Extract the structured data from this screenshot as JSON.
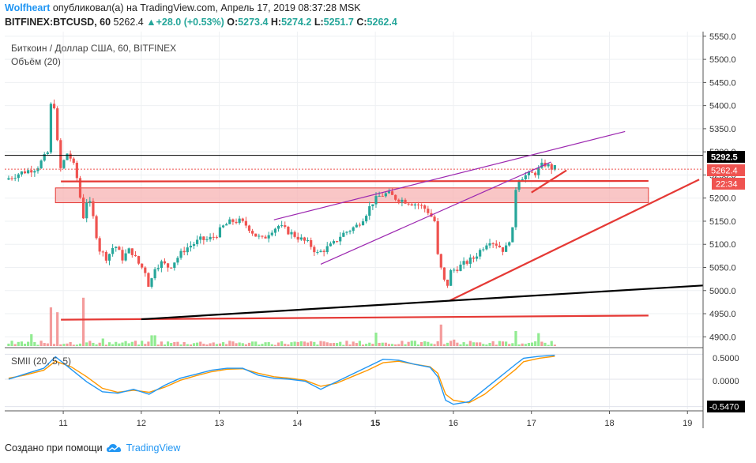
{
  "header": {
    "user": "Wolfheart",
    "published_text": "опубликовал(а) на TradingView.com, Апрель 17, 2019 08:37:28 MSK",
    "symbol": "BITFINEX:BTCUSD, 60",
    "last": "5262.4",
    "change": "▲+28.0 (+0.53%)",
    "o_label": "O:",
    "o": "5273.4",
    "h_label": "H:",
    "h": "5274.2",
    "l_label": "L:",
    "l": "5251.7",
    "c_label": "C:",
    "c": "5262.4"
  },
  "legend": {
    "title": "Биткоин / Доллар США, 60, BITFINEX",
    "volume": "Объём (20)",
    "smii": "SMII (20, 5, 5)"
  },
  "footer": {
    "text": "Создано при помощи",
    "brand": "TradingView",
    "logo_icon": "tradingview-cloud-icon"
  },
  "price_labels": {
    "level": "5292.5",
    "last": "5262.4",
    "countdown": "22:34",
    "smii_top": "0.5000",
    "smii_zero": "0.0000",
    "smii_bottom": "-0.5470"
  },
  "colors": {
    "up": "#26a69a",
    "down": "#ef5350",
    "trend_red": "#e53935",
    "wedge": "#9c27b0",
    "smii_fast": "#2196f3",
    "smii_slow": "#ff9800"
  },
  "chart_data": {
    "type": "candlestick",
    "x_ticks": [
      "11",
      "12",
      "13",
      "14",
      "15",
      "16",
      "17",
      "18",
      "19"
    ],
    "x_tick_positions": [
      11,
      12,
      13,
      14,
      15,
      16,
      17,
      18,
      19
    ],
    "x_range": [
      10.25,
      19.2
    ],
    "y_ticks": [
      4900,
      4950,
      5000,
      5050,
      5100,
      5150,
      5200,
      5250,
      5300,
      5350,
      5400,
      5450,
      5500,
      5550
    ],
    "ylim": [
      4880,
      5560
    ],
    "price_path": [
      [
        10.3,
        5240
      ],
      [
        10.5,
        5255
      ],
      [
        10.7,
        5265
      ],
      [
        10.85,
        5300
      ],
      [
        10.9,
        5450
      ],
      [
        10.95,
        5350
      ],
      [
        11.0,
        5260
      ],
      [
        11.1,
        5300
      ],
      [
        11.2,
        5260
      ],
      [
        11.25,
        5210
      ],
      [
        11.3,
        5160
      ],
      [
        11.35,
        5200
      ],
      [
        11.4,
        5180
      ],
      [
        11.5,
        5090
      ],
      [
        11.6,
        5070
      ],
      [
        11.7,
        5100
      ],
      [
        11.8,
        5070
      ],
      [
        11.9,
        5090
      ],
      [
        12.0,
        5060
      ],
      [
        12.1,
        5040
      ],
      [
        12.15,
        5000
      ],
      [
        12.2,
        5050
      ],
      [
        12.3,
        5060
      ],
      [
        12.4,
        5050
      ],
      [
        12.5,
        5070
      ],
      [
        12.6,
        5090
      ],
      [
        12.7,
        5100
      ],
      [
        12.8,
        5110
      ],
      [
        12.9,
        5110
      ],
      [
        13.0,
        5120
      ],
      [
        13.1,
        5140
      ],
      [
        13.2,
        5150
      ],
      [
        13.3,
        5150
      ],
      [
        13.4,
        5140
      ],
      [
        13.5,
        5120
      ],
      [
        13.6,
        5110
      ],
      [
        13.7,
        5130
      ],
      [
        13.8,
        5140
      ],
      [
        13.9,
        5130
      ],
      [
        14.0,
        5120
      ],
      [
        14.1,
        5110
      ],
      [
        14.2,
        5100
      ],
      [
        14.3,
        5080
      ],
      [
        14.4,
        5090
      ],
      [
        14.5,
        5100
      ],
      [
        14.6,
        5120
      ],
      [
        14.7,
        5130
      ],
      [
        14.8,
        5140
      ],
      [
        14.9,
        5160
      ],
      [
        15.0,
        5190
      ],
      [
        15.1,
        5205
      ],
      [
        15.2,
        5210
      ],
      [
        15.3,
        5200
      ],
      [
        15.4,
        5195
      ],
      [
        15.5,
        5190
      ],
      [
        15.6,
        5185
      ],
      [
        15.7,
        5175
      ],
      [
        15.8,
        5150
      ],
      [
        15.85,
        5060
      ],
      [
        15.9,
        5040
      ],
      [
        15.95,
        5000
      ],
      [
        16.0,
        5040
      ],
      [
        16.1,
        5050
      ],
      [
        16.2,
        5060
      ],
      [
        16.3,
        5070
      ],
      [
        16.4,
        5090
      ],
      [
        16.5,
        5110
      ],
      [
        16.6,
        5100
      ],
      [
        16.7,
        5085
      ],
      [
        16.8,
        5130
      ],
      [
        16.85,
        5240
      ],
      [
        16.9,
        5245
      ],
      [
        17.0,
        5250
      ],
      [
        17.1,
        5255
      ],
      [
        17.2,
        5275
      ],
      [
        17.3,
        5265
      ]
    ],
    "volume_ylim": [
      0,
      100
    ],
    "volume_spikes": [
      [
        10.6,
        22
      ],
      [
        10.85,
        72
      ],
      [
        10.92,
        63
      ],
      [
        11.25,
        90
      ],
      [
        11.5,
        14
      ],
      [
        12.15,
        20
      ],
      [
        15.0,
        25
      ],
      [
        15.85,
        40
      ],
      [
        16.0,
        12
      ],
      [
        16.8,
        28
      ],
      [
        17.1,
        24
      ]
    ],
    "smii_ylim": [
      -0.6,
      0.6
    ],
    "smii_fast": [
      [
        10.3,
        0.0
      ],
      [
        10.5,
        0.1
      ],
      [
        10.75,
        0.22
      ],
      [
        10.9,
        0.45
      ],
      [
        11.1,
        0.2
      ],
      [
        11.3,
        -0.05
      ],
      [
        11.5,
        -0.25
      ],
      [
        11.7,
        -0.28
      ],
      [
        11.9,
        -0.2
      ],
      [
        12.1,
        -0.3
      ],
      [
        12.3,
        -0.12
      ],
      [
        12.5,
        0.02
      ],
      [
        12.7,
        0.1
      ],
      [
        12.9,
        0.18
      ],
      [
        13.1,
        0.22
      ],
      [
        13.3,
        0.22
      ],
      [
        13.5,
        0.08
      ],
      [
        13.7,
        0.02
      ],
      [
        13.9,
        0.0
      ],
      [
        14.1,
        -0.04
      ],
      [
        14.3,
        -0.2
      ],
      [
        14.5,
        -0.05
      ],
      [
        14.7,
        0.1
      ],
      [
        14.9,
        0.25
      ],
      [
        15.1,
        0.4
      ],
      [
        15.3,
        0.38
      ],
      [
        15.5,
        0.3
      ],
      [
        15.7,
        0.24
      ],
      [
        15.8,
        0.05
      ],
      [
        15.9,
        -0.42
      ],
      [
        16.0,
        -0.5
      ],
      [
        16.2,
        -0.45
      ],
      [
        16.4,
        -0.2
      ],
      [
        16.6,
        0.05
      ],
      [
        16.8,
        0.3
      ],
      [
        16.9,
        0.42
      ],
      [
        17.1,
        0.46
      ],
      [
        17.3,
        0.48
      ]
    ],
    "smii_slow": [
      [
        10.3,
        0.02
      ],
      [
        10.5,
        0.08
      ],
      [
        10.75,
        0.18
      ],
      [
        10.9,
        0.36
      ],
      [
        11.1,
        0.25
      ],
      [
        11.3,
        0.05
      ],
      [
        11.5,
        -0.18
      ],
      [
        11.7,
        -0.26
      ],
      [
        11.9,
        -0.22
      ],
      [
        12.1,
        -0.26
      ],
      [
        12.3,
        -0.16
      ],
      [
        12.5,
        -0.02
      ],
      [
        12.7,
        0.07
      ],
      [
        12.9,
        0.15
      ],
      [
        13.1,
        0.2
      ],
      [
        13.3,
        0.21
      ],
      [
        13.5,
        0.12
      ],
      [
        13.7,
        0.05
      ],
      [
        13.9,
        0.02
      ],
      [
        14.1,
        -0.02
      ],
      [
        14.3,
        -0.14
      ],
      [
        14.5,
        -0.08
      ],
      [
        14.7,
        0.05
      ],
      [
        14.9,
        0.18
      ],
      [
        15.1,
        0.33
      ],
      [
        15.3,
        0.36
      ],
      [
        15.5,
        0.3
      ],
      [
        15.7,
        0.25
      ],
      [
        15.8,
        0.12
      ],
      [
        15.9,
        -0.3
      ],
      [
        16.0,
        -0.42
      ],
      [
        16.2,
        -0.47
      ],
      [
        16.4,
        -0.3
      ],
      [
        16.6,
        -0.05
      ],
      [
        16.8,
        0.2
      ],
      [
        16.9,
        0.35
      ],
      [
        17.1,
        0.42
      ],
      [
        17.3,
        0.46
      ]
    ],
    "zone": {
      "x_start": 10.9,
      "x_end": 18.5,
      "y_low": 5190,
      "y_high": 5222
    },
    "levels": [
      {
        "y": 5292.5
      },
      {
        "y": 5262.4,
        "style": "dotted"
      }
    ],
    "trendlines": [
      {
        "color": "trend_red",
        "points": [
          [
            10.97,
            5236
          ],
          [
            18.5,
            5237
          ]
        ]
      },
      {
        "color": "trend_red",
        "points": [
          [
            10.97,
            4937
          ],
          [
            18.5,
            4946
          ]
        ]
      },
      {
        "color": "trend_red",
        "points": [
          [
            15.95,
            4978
          ],
          [
            19.15,
            5240
          ]
        ]
      },
      {
        "color": "trend_red",
        "points": [
          [
            17.0,
            5212
          ],
          [
            17.45,
            5260
          ]
        ]
      },
      {
        "color": "black",
        "points": [
          [
            12.0,
            4938
          ],
          [
            19.2,
            5011
          ]
        ]
      },
      {
        "color": "wedge",
        "points": [
          [
            13.7,
            5153
          ],
          [
            18.2,
            5344
          ]
        ]
      },
      {
        "color": "wedge",
        "points": [
          [
            14.3,
            5057
          ],
          [
            17.25,
            5278
          ]
        ]
      }
    ]
  }
}
